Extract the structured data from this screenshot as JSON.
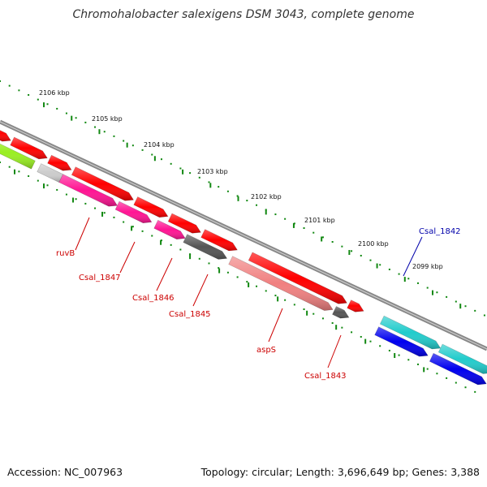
{
  "title": "Chromohalobacter salexigens DSM 3043, complete genome",
  "footer": {
    "accession": "Accession: NC_007963",
    "stats": "Topology: circular; Length: 3,696,649 bp; Genes: 3,388"
  },
  "kbp_labels": [
    "2106 kbp",
    "2105 kbp",
    "2104 kbp",
    "2103 kbp",
    "2102 kbp",
    "2101 kbp",
    "2100 kbp",
    "2099 kbp"
  ],
  "gene_labels": [
    {
      "text": "ruvB",
      "color": "#cc0000"
    },
    {
      "text": "Csal_1847",
      "color": "#cc0000"
    },
    {
      "text": "Csal_1846",
      "color": "#cc0000"
    },
    {
      "text": "Csal_1845",
      "color": "#cc0000"
    },
    {
      "text": "aspS",
      "color": "#cc0000"
    },
    {
      "text": "Csal_1843",
      "color": "#cc0000"
    },
    {
      "text": "Csal_1842",
      "color": "#0000aa"
    }
  ],
  "colors": {
    "cds_forward": "#ff0000",
    "rrna_pink": "#ff1493",
    "light_red": "#f08080",
    "gray_gene": "#555555",
    "lime_gene": "#99ee22",
    "cyan_gene": "#22cccc",
    "blue_gene": "#0000ee",
    "tick_green": "#118811",
    "backbone": "#888888"
  }
}
